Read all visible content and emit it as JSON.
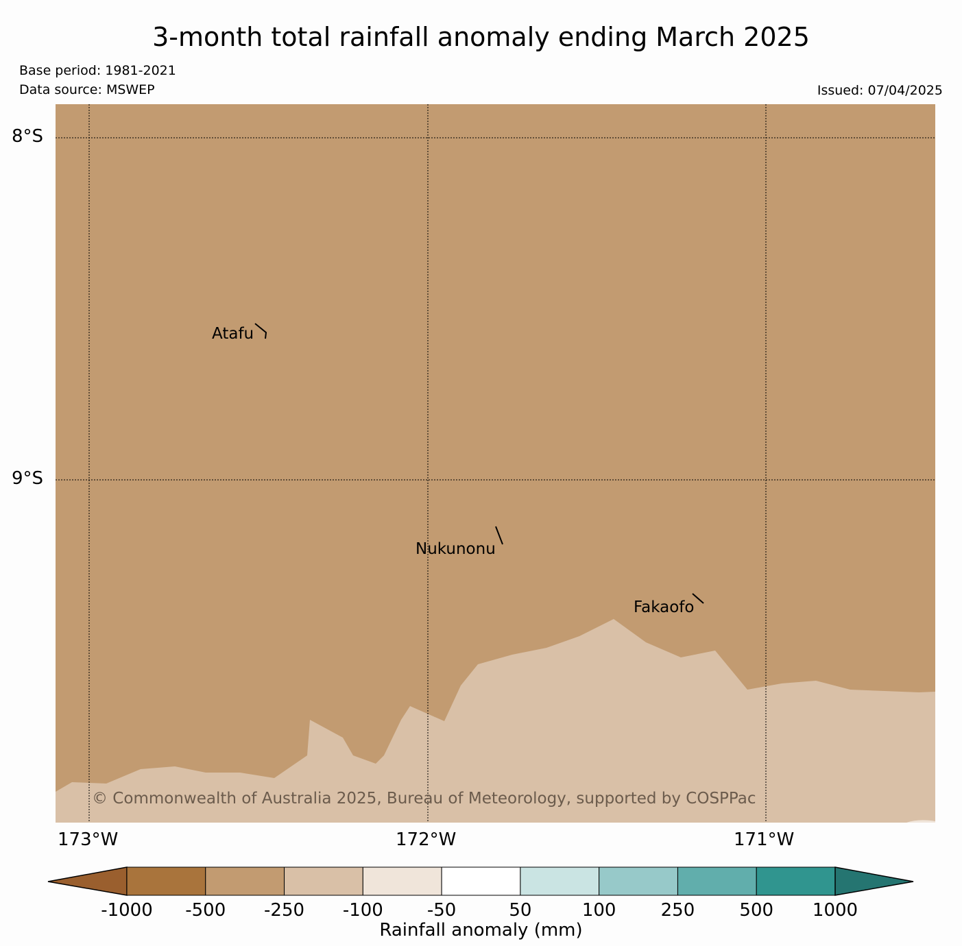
{
  "header": {
    "title": "3-month total rainfall anomaly ending March 2025",
    "base_period": "Base period: 1981-2021",
    "data_source": "Data source: MSWEP",
    "issued": "Issued: 07/04/2025"
  },
  "map": {
    "lat_labels": [
      "8°S",
      "9°S"
    ],
    "lon_labels": [
      "173°W",
      "172°W",
      "171°W"
    ],
    "islands": [
      {
        "name": "Atafu"
      },
      {
        "name": "Nukunonu"
      },
      {
        "name": "Fakaofo"
      }
    ],
    "copyright": "© Commonwealth of Australia 2025, Bureau of Meteorology, supported by COSPPac",
    "shaded_classes": {
      "north": "-500 to -250",
      "south": "-250 to -100"
    }
  },
  "colorbar": {
    "title": "Rainfall anomaly (mm)",
    "ticks": [
      "-1000",
      "-500",
      "-250",
      "-100",
      "-50",
      "50",
      "100",
      "250",
      "500",
      "1000"
    ],
    "colors": [
      "#9a5f2e",
      "#a9743c",
      "#c29b71",
      "#d9c0a7",
      "#f0e5da",
      "#ffffff",
      "#cae4e3",
      "#97c9c9",
      "#61aeac",
      "#30958f",
      "#257571"
    ]
  }
}
